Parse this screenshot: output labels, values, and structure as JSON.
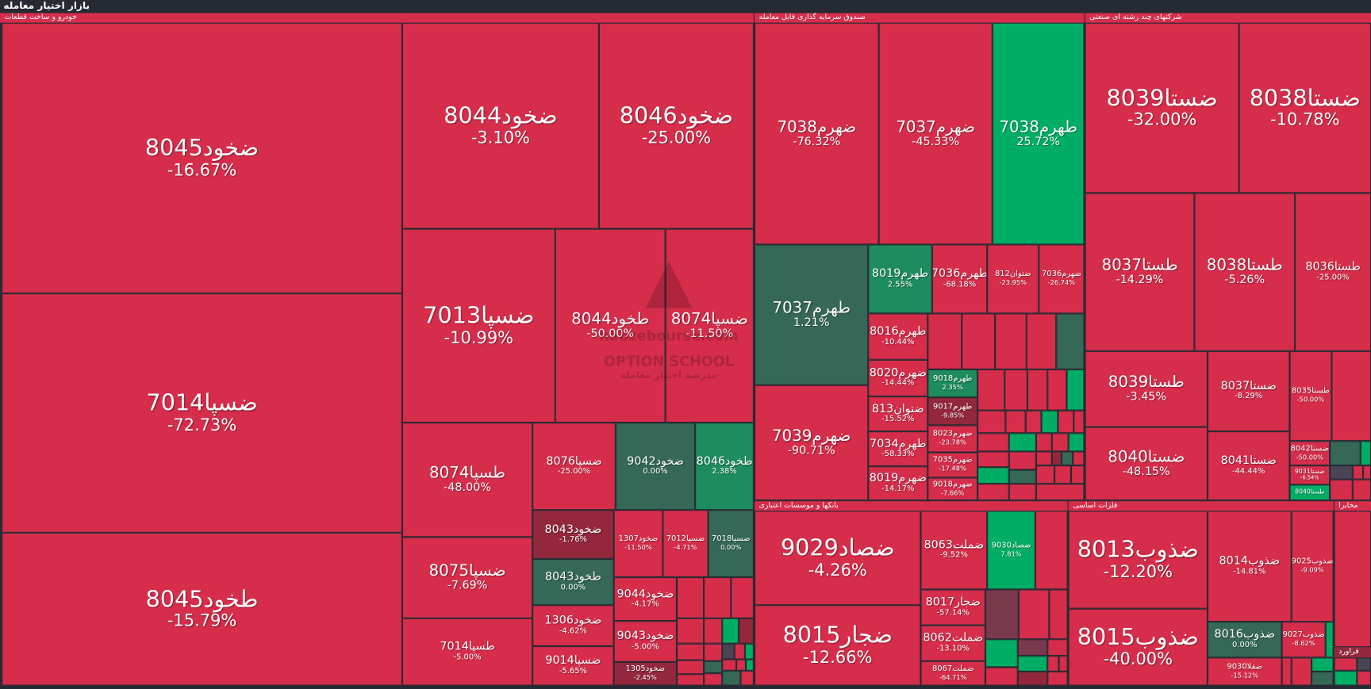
{
  "app_title": "بازار اختیار معامله",
  "palette": {
    "red": "#d62d4b",
    "dark_red": "#93283c",
    "mauve": "#7a3a4e",
    "dark_green": "#356856",
    "mid_green": "#1e8c5e",
    "green": "#00ad65",
    "gray": "#4a4555",
    "background": "#262a33"
  },
  "watermark": {
    "site": "nabzebourse.com",
    "school": "OPTION SCHOOL",
    "school_fa": "مدرسه اختیار معامله"
  },
  "sectors": [
    {
      "label": "خودرو و ساخت قطعات"
    },
    {
      "label": "صندوق سرمایه گذاری قابل معامله"
    },
    {
      "label": "شرکتهای چند رشته ای صنعتی"
    },
    {
      "label": "بانکها و موسسات اعتباری"
    },
    {
      "label": "فلزات اساسی"
    },
    {
      "label": "مخابرا"
    },
    {
      "label": "فراورد"
    }
  ],
  "tiles": [
    {
      "symbol": "ضخود8045",
      "change": "-16.67%",
      "state": "red"
    },
    {
      "symbol": "ضسپا7014",
      "change": "-72.73%",
      "state": "red"
    },
    {
      "symbol": "طخود8045",
      "change": "-15.79%",
      "state": "red"
    },
    {
      "symbol": "ضخود8044",
      "change": "-3.10%",
      "state": "red"
    },
    {
      "symbol": "ضخود8046",
      "change": "-25.00%",
      "state": "red"
    },
    {
      "symbol": "ضسپا7013",
      "change": "-10.99%",
      "state": "red"
    },
    {
      "symbol": "طخود8044",
      "change": "-50.00%",
      "state": "red"
    },
    {
      "symbol": "ضسپا8074",
      "change": "-11.50%",
      "state": "red"
    },
    {
      "symbol": "طسپا8074",
      "change": "-48.00%",
      "state": "red"
    },
    {
      "symbol": "ضسپا8075",
      "change": "-7.69%",
      "state": "red"
    },
    {
      "symbol": "طسپا7014",
      "change": "-5.00%",
      "state": "red"
    },
    {
      "symbol": "ضسپا8076",
      "change": "-25.00%",
      "state": "red"
    },
    {
      "symbol": "ضخود9042",
      "change": "0.00%",
      "state": "dark_green"
    },
    {
      "symbol": "طخود8046",
      "change": "2.38%",
      "state": "mid_green"
    },
    {
      "symbol": "ضخود8043",
      "change": "-1.76%",
      "state": "dark_red"
    },
    {
      "symbol": "طخود8043",
      "change": "0.00%",
      "state": "dark_green"
    },
    {
      "symbol": "ضخود1306",
      "change": "-4.62%",
      "state": "red"
    },
    {
      "symbol": "ضسپا9014",
      "change": "-5.65%",
      "state": "red"
    },
    {
      "symbol": "ضخود1307",
      "change": "-11.50%",
      "state": "red"
    },
    {
      "symbol": "ضسپا7012",
      "change": "-4.71%",
      "state": "red"
    },
    {
      "symbol": "ضسپا7018",
      "change": "0.00%",
      "state": "dark_green"
    },
    {
      "symbol": "ضخود9044",
      "change": "-4.17%",
      "state": "red"
    },
    {
      "symbol": "ضخود9043",
      "change": "-5.00%",
      "state": "red"
    },
    {
      "symbol": "ضخود1305",
      "change": "-2.45%",
      "state": "dark_red"
    },
    {
      "symbol": "ضهرم7038",
      "change": "-76.32%",
      "state": "red"
    },
    {
      "symbol": "ضهرم7037",
      "change": "-45.33%",
      "state": "red"
    },
    {
      "symbol": "طهرم7038",
      "change": "25.72%",
      "state": "green"
    },
    {
      "symbol": "طهرم7037",
      "change": "1.21%",
      "state": "dark_green"
    },
    {
      "symbol": "ضهرم7039",
      "change": "-90.71%",
      "state": "red"
    },
    {
      "symbol": "طهرم8019",
      "change": "2.55%",
      "state": "mid_green"
    },
    {
      "symbol": "طهرم7036",
      "change": "-68.18%",
      "state": "red"
    },
    {
      "symbol": "ضتوان812",
      "change": "-23.95%",
      "state": "red"
    },
    {
      "symbol": "ضهرم7036",
      "change": "-26.74%",
      "state": "red"
    },
    {
      "symbol": "طهرم8016",
      "change": "-10.44%",
      "state": "red"
    },
    {
      "symbol": "ضهرم8020",
      "change": "-14.44%",
      "state": "red"
    },
    {
      "symbol": "ضتوان813",
      "change": "-15.52%",
      "state": "red"
    },
    {
      "symbol": "طهرم7034",
      "change": "-58.33%",
      "state": "red"
    },
    {
      "symbol": "ضهرم8019",
      "change": "-14.17%",
      "state": "red"
    },
    {
      "symbol": "طهرم9018",
      "change": "2.35%",
      "state": "mid_green"
    },
    {
      "symbol": "طهرم9017",
      "change": "-9.85%",
      "state": "dark_red"
    },
    {
      "symbol": "ضهرم8023",
      "change": "-23.78%",
      "state": "red"
    },
    {
      "symbol": "ضهرم7035",
      "change": "-17.48%",
      "state": "red"
    },
    {
      "symbol": "ضهرم9018",
      "change": "-7.66%",
      "state": "red"
    },
    {
      "symbol": "ضستا8039",
      "change": "-32.00%",
      "state": "red"
    },
    {
      "symbol": "ضستا8038",
      "change": "-10.78%",
      "state": "red"
    },
    {
      "symbol": "طستا8037",
      "change": "-14.29%",
      "state": "red"
    },
    {
      "symbol": "طستا8038",
      "change": "-5.26%",
      "state": "red"
    },
    {
      "symbol": "طستا8036",
      "change": "-25.00%",
      "state": "red"
    },
    {
      "symbol": "طستا8039",
      "change": "-3.45%",
      "state": "red"
    },
    {
      "symbol": "ضستا8040",
      "change": "-48.15%",
      "state": "red"
    },
    {
      "symbol": "ضستا8037",
      "change": "-8.29%",
      "state": "red"
    },
    {
      "symbol": "ضستا8041",
      "change": "-44.44%",
      "state": "red"
    },
    {
      "symbol": "طستا8035",
      "change": "-50.00%",
      "state": "red"
    },
    {
      "symbol": "ضستا8042",
      "change": "-50.00%",
      "state": "red"
    },
    {
      "symbol": "ضستا9031",
      "change": "-6.54%",
      "state": "red"
    },
    {
      "symbol": "طستا8040",
      "change": "",
      "state": "green"
    },
    {
      "symbol": "ضصاد9029",
      "change": "-4.26%",
      "state": "red"
    },
    {
      "symbol": "ضجار8015",
      "change": "-12.66%",
      "state": "red"
    },
    {
      "symbol": "ضملت8063",
      "change": "-9.52%",
      "state": "red"
    },
    {
      "symbol": "ضصاد9030",
      "change": "7.81%",
      "state": "green"
    },
    {
      "symbol": "ضجار8017",
      "change": "-57.14%",
      "state": "red"
    },
    {
      "symbol": "ضملت8062",
      "change": "-13.10%",
      "state": "red"
    },
    {
      "symbol": "ضملت8067",
      "change": "-64.71%",
      "state": "red"
    },
    {
      "symbol": "ضذوب8013",
      "change": "-12.20%",
      "state": "red"
    },
    {
      "symbol": "ضذوب8015",
      "change": "-40.00%",
      "state": "red"
    },
    {
      "symbol": "ضذوب8014",
      "change": "-14.81%",
      "state": "red"
    },
    {
      "symbol": "ضذوب9025",
      "change": "-9.09%",
      "state": "red"
    },
    {
      "symbol": "ضذوب8016",
      "change": "0.00%",
      "state": "dark_green"
    },
    {
      "symbol": "ضذوب9027",
      "change": "-8.62%",
      "state": "red"
    },
    {
      "symbol": "ضفلا9030",
      "change": "-15.12%",
      "state": "red"
    }
  ]
}
